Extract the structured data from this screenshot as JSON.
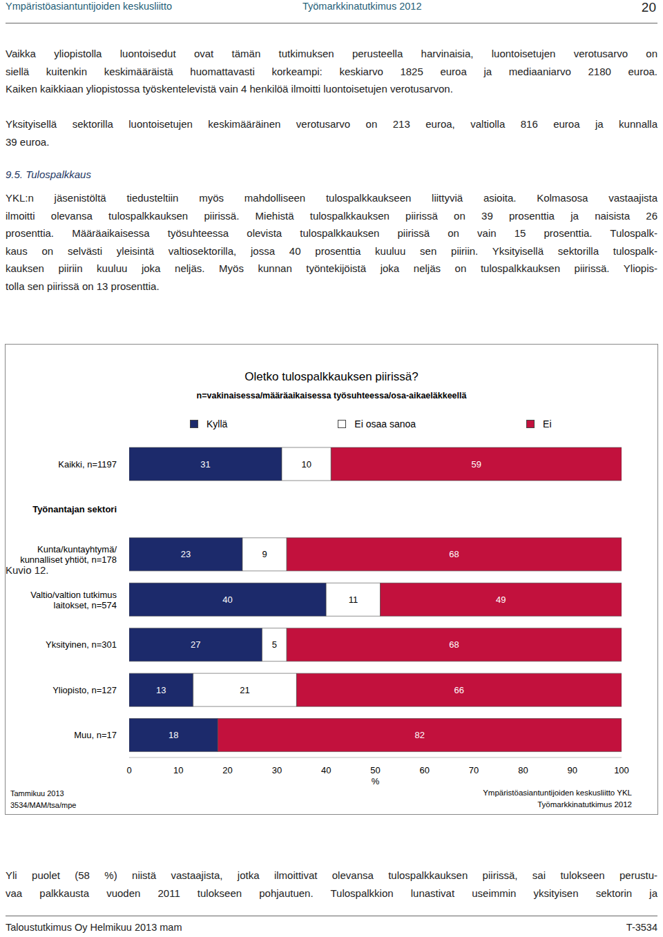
{
  "header": {
    "left": "Ympäristöasiantuntijoiden keskusliitto",
    "center": "Työmarkkinatutkimus 2012",
    "page": "20"
  },
  "paragraphs_top": [
    [
      "Vaikka yliopistolla luontoisedut ovat tämän tutkimuksen perusteella harvinaisia, luontoisetujen verotusarvo on",
      "siellä kuitenkin keskimääräistä huomattavasti korkeampi: keskiarvo 1825 euroa ja mediaaniarvo 2180 euroa.",
      "Kaiken kaikkiaan yliopistossa työskentelevistä vain 4 henkilöä ilmoitti luontoisetujen verotusarvon."
    ],
    [
      "Yksityisellä sektorilla luontoisetujen keskimääräinen verotusarvo on 213 euroa, valtiolla 816 euroa ja kunnalla",
      "39 euroa."
    ]
  ],
  "heading": "9.5. Tulospalkkaus",
  "paragraphs_section": [
    [
      "YKL:n jäsenistöltä tiedusteltiin myös mahdolliseen tulospalkkaukseen liittyviä asioita. Kolmasosa vastaajista",
      "ilmoitti olevansa tulospalkkauksen piirissä. Miehistä tulospalkkauksen piirissä on 39 prosenttia ja naisista 26",
      "prosenttia. Määräaikaisessa työsuhteessa olevista tulospalkkauksen piirissä on vain 15 prosenttia. Tulospalk-",
      "kaus on selvästi yleisintä valtiosektorilla, jossa 40 prosenttia kuuluu sen piiriin. Yksityisellä sektorilla tulospalk-",
      "kauksen piiriin kuuluu joka neljäs. Myös kunnan työntekijöistä joka neljäs on tulospalkkauksen piirissä. Yliopis-",
      "tolla sen piirissä on 13 prosenttia."
    ]
  ],
  "figure_label": "Kuvio 12.",
  "chart_data": {
    "type": "bar",
    "orientation": "horizontal",
    "stacked": true,
    "data_labels": true,
    "legend": "top",
    "grid": false,
    "title": "Oletko tulospalkkauksen piirissä?",
    "subtitle": "n=vakinaisessa/määräaikaisessa työsuhteessa/osa-aikaeläkkeellä",
    "xlabel": "%",
    "categories": [
      "Kaikki, n=1197",
      "Työnantajan sektori",
      "Kunta/kuntayhtymä/\nkunnalliset yhtiöt, n=178",
      "Valtio/valtion tutkimus\nlaitokset, n=574",
      "Yksityinen, n=301",
      "Yliopisto, n=127",
      "Muu, n=17"
    ],
    "series": [
      {
        "name": "Kyllä",
        "color": "#1c2a6b",
        "values": [
          31,
          null,
          23,
          40,
          27,
          13,
          18
        ]
      },
      {
        "name": "Ei osaa sanoa",
        "color": "#ffffff",
        "values": [
          10,
          null,
          9,
          11,
          5,
          21,
          null
        ]
      },
      {
        "name": "Ei",
        "color": "#c2113d",
        "values": [
          59,
          null,
          68,
          49,
          68,
          66,
          82
        ]
      }
    ],
    "xlim": [
      0,
      100
    ],
    "xticks": [
      0,
      10,
      20,
      30,
      40,
      50,
      60,
      70,
      80,
      90,
      100
    ],
    "annotations": {
      "left": [
        "Tammikuu 2013",
        "3534/MAM/tsa/mpe"
      ],
      "right": [
        "Ympäristöasiantuntijoiden keskusliitto YKL",
        "Työmarkkinatutkimus 2012"
      ]
    }
  },
  "paragraphs_bottom": [
    [
      "Yli puolet (58 %) niistä vastaajista, jotka ilmoittivat olevansa tulospalkkauksen piirissä, sai tulokseen perustu-",
      "vaa palkkausta vuoden 2011 tulokseen pohjautuen. Tulospalkkion lunastivat useimmin yksityisen sektorin ja"
    ]
  ],
  "footer": {
    "left": "Taloustutkimus Oy Helmikuu 2013 mam",
    "right": "T-3534"
  }
}
